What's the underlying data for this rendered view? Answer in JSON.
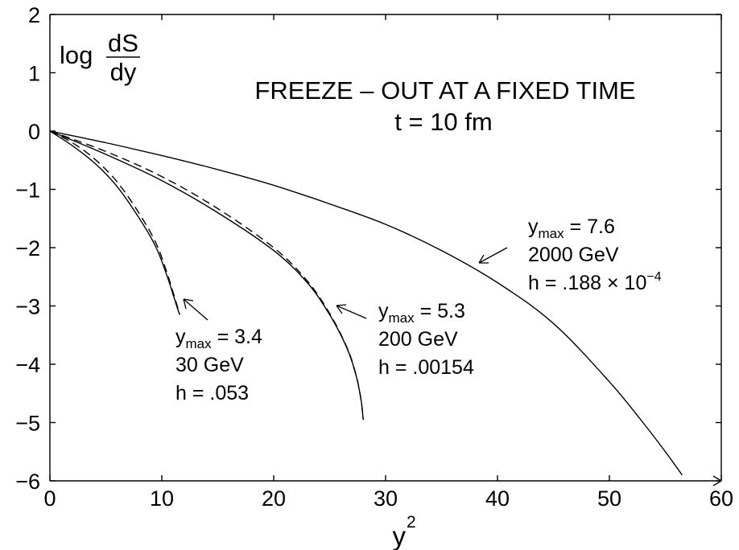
{
  "chart_data": {
    "type": "line",
    "title": "FREEZE – OUT AT A FIXED TIME",
    "subtitle": "t = 10 fm",
    "xlabel": {
      "base": "y",
      "sup": "2"
    },
    "ylabel": {
      "prefix": "log",
      "num": "dS",
      "den": "dy"
    },
    "xlim": [
      0,
      60
    ],
    "ylim": [
      -6,
      2
    ],
    "x_ticks": [
      0,
      10,
      20,
      30,
      40,
      50,
      60
    ],
    "x_tick_labels": [
      "0",
      "10",
      "20",
      "30",
      "40",
      "50",
      "60"
    ],
    "y_ticks": [
      2,
      1,
      0,
      -1,
      -2,
      -3,
      -4,
      -5,
      -6
    ],
    "y_tick_labels": [
      "2",
      "1",
      "0",
      "−1",
      "−2",
      "−3",
      "−4",
      "−5",
      "−6"
    ],
    "grid": false,
    "series": [
      {
        "style": "solid",
        "x": [
          0,
          2,
          4,
          6,
          8,
          9.5,
          10.5,
          11,
          11.3,
          11.5,
          11.6
        ],
        "y": [
          0,
          -0.25,
          -0.55,
          -0.95,
          -1.5,
          -2.0,
          -2.5,
          -2.8,
          -2.98,
          -3.1,
          -3.15
        ]
      },
      {
        "style": "dashed",
        "x": [
          0,
          2,
          4,
          6,
          8,
          9.5,
          10.5,
          11,
          11.3,
          11.5,
          11.6
        ],
        "y": [
          0,
          -0.2,
          -0.48,
          -0.87,
          -1.42,
          -1.93,
          -2.45,
          -2.76,
          -2.95,
          -3.08,
          -3.15
        ]
      },
      {
        "style": "solid",
        "x": [
          0,
          5,
          10,
          15,
          20,
          23,
          25,
          26.5,
          27.3,
          27.8,
          28
        ],
        "y": [
          0,
          -0.4,
          -0.85,
          -1.4,
          -2.05,
          -2.6,
          -3.15,
          -3.7,
          -4.15,
          -4.6,
          -4.95
        ]
      },
      {
        "style": "dashed",
        "x": [
          0,
          5,
          10,
          15,
          20,
          23,
          25,
          26.5,
          27.3,
          27.8,
          28
        ],
        "y": [
          0,
          -0.35,
          -0.78,
          -1.33,
          -2.0,
          -2.57,
          -3.13,
          -3.69,
          -4.14,
          -4.6,
          -4.95
        ]
      },
      {
        "style": "solid",
        "x": [
          0,
          5,
          10,
          15,
          20,
          25,
          30,
          35,
          40,
          45,
          50,
          53,
          55,
          56.5
        ],
        "y": [
          0,
          -0.2,
          -0.42,
          -0.66,
          -0.93,
          -1.25,
          -1.6,
          -2.05,
          -2.6,
          -3.3,
          -4.3,
          -5.0,
          -5.5,
          -5.9
        ]
      }
    ],
    "annotations": [
      {
        "lines": [
          "y|max| = 3.4",
          "30 GeV",
          "h = .053"
        ],
        "ymax": "3.4"
      },
      {
        "lines": [
          "y|max| = 5.3",
          "200 GeV",
          "h = .00154"
        ],
        "ymax": "5.3"
      },
      {
        "lines": [
          "y|max| = 7.6",
          "2000 GeV",
          "h = .188 × 10⁻⁴"
        ],
        "ymax": "7.6"
      }
    ],
    "annotation_text": {
      "a1": {
        "var": "y",
        "sub": "max",
        "eq": " = 3.4",
        "l2": "30 GeV",
        "l3": "h = .053"
      },
      "a2": {
        "var": "y",
        "sub": "max",
        "eq": " = 5.3",
        "l2": "200 GeV",
        "l3": "h = .00154"
      },
      "a3": {
        "var": "y",
        "sub": "max",
        "eq": " = 7.6",
        "l2": "2000 GeV",
        "l3_main": "h = .188 × 10",
        "l3_sup": "−4"
      }
    }
  }
}
